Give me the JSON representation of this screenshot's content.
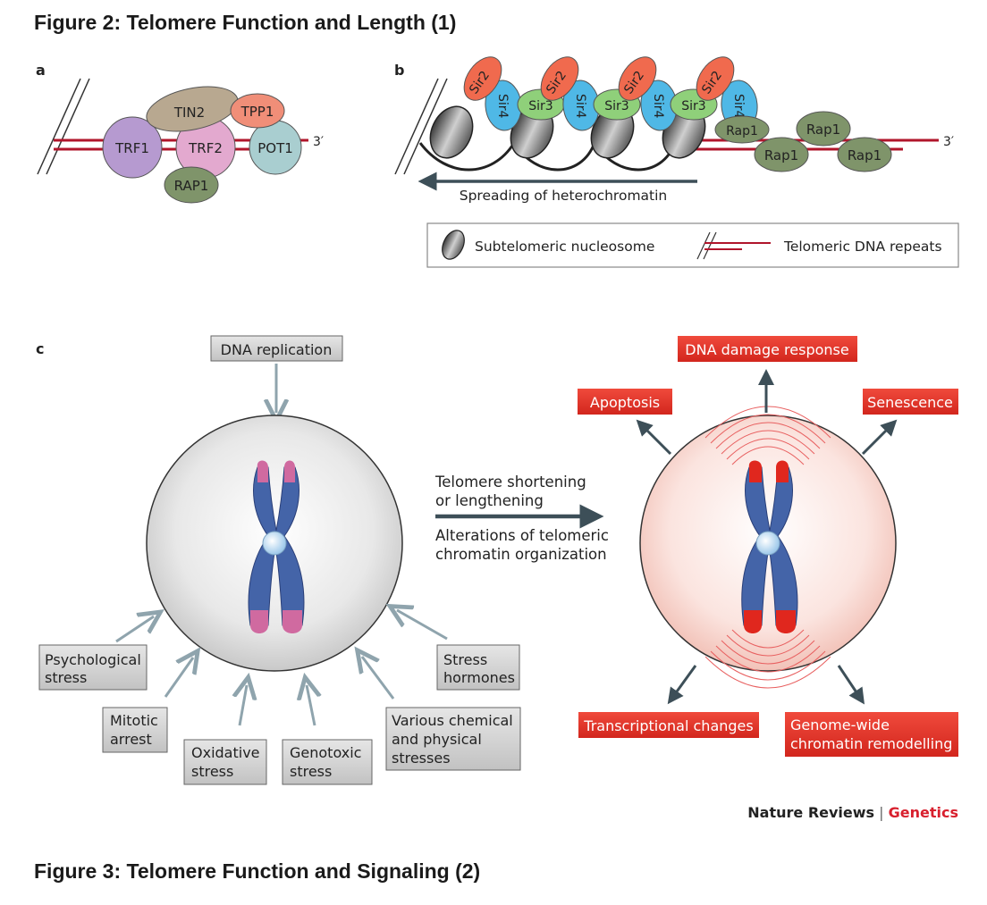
{
  "figure2_title": "Figure 2: Telomere Function and Length (1)",
  "figure3_title": "Figure 3: Telomere Function and Signaling (2)",
  "panel_a": {
    "letter": "a",
    "proteins": {
      "tin2": "TIN2",
      "tpp1": "TPP1",
      "trf1": "TRF1",
      "trf2": "TRF2",
      "pot1": "POT1",
      "rap1": "RAP1"
    },
    "end_label": "3′"
  },
  "panel_b": {
    "letter": "b",
    "sir2": "Sir2",
    "sir3": "Sir3",
    "sir4": "Sir4",
    "rap1": "Rap1",
    "end_label": "3′",
    "spreading_label": "Spreading of heterochromatin",
    "legend": {
      "nucleosome": "Subtelomeric nucleosome",
      "repeats": "Telomeric DNA repeats"
    }
  },
  "panel_c": {
    "letter": "c",
    "dna_replication": "DNA replication",
    "causes": {
      "psych_1": "Psychological",
      "psych_2": "stress",
      "mitotic_1": "Mitotic",
      "mitotic_2": "arrest",
      "oxidative_1": "Oxidative",
      "oxidative_2": "stress",
      "genotoxic_1": "Genotoxic",
      "genotoxic_2": "stress",
      "chemical_1": "Various chemical",
      "chemical_2": "and physical",
      "chemical_3": "stresses",
      "hormones_1": "Stress",
      "hormones_2": "hormones"
    },
    "middle": {
      "shortening_1": "Telomere shortening",
      "shortening_2": "or lengthening",
      "alterations_1": "Alterations of telomeric",
      "alterations_2": "chromatin organization"
    },
    "effects": {
      "dna_damage": "DNA damage response",
      "apoptosis": "Apoptosis",
      "senescence": "Senescence",
      "transcriptional": "Transcriptional changes",
      "genome_1": "Genome-wide",
      "genome_2": "chromatin remodelling"
    }
  },
  "credit": {
    "journal": "Nature Reviews",
    "separator": " | ",
    "section": "Genetics"
  },
  "colors": {
    "red_box": "#e23a2e",
    "grey_box": "#d4d4d4",
    "arrow": "#8fa4ad",
    "dark_arrow": "#3d4f58",
    "dna_red": "#b0152b",
    "accent_red": "#d8202e"
  }
}
